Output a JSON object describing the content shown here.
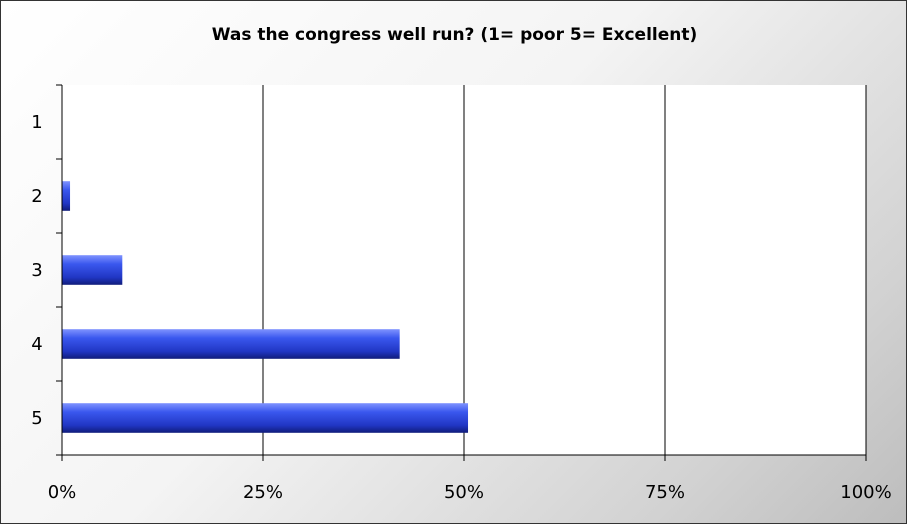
{
  "chart_data": {
    "type": "bar",
    "orientation": "horizontal",
    "title": "Was the congress well run? (1= poor 5= Excellent)",
    "categories": [
      "1",
      "2",
      "3",
      "4",
      "5"
    ],
    "values": [
      0,
      1,
      7.5,
      42,
      50.5
    ],
    "unit": "%",
    "xlim": [
      0,
      100
    ],
    "x_ticks": [
      "0%",
      "25%",
      "50%",
      "75%",
      "100%"
    ],
    "x_tick_values": [
      0,
      25,
      50,
      75,
      100
    ],
    "grid": "vertical major gridlines",
    "legend": "none",
    "bar_color": "#2d47d9",
    "background": "gray gradient"
  }
}
